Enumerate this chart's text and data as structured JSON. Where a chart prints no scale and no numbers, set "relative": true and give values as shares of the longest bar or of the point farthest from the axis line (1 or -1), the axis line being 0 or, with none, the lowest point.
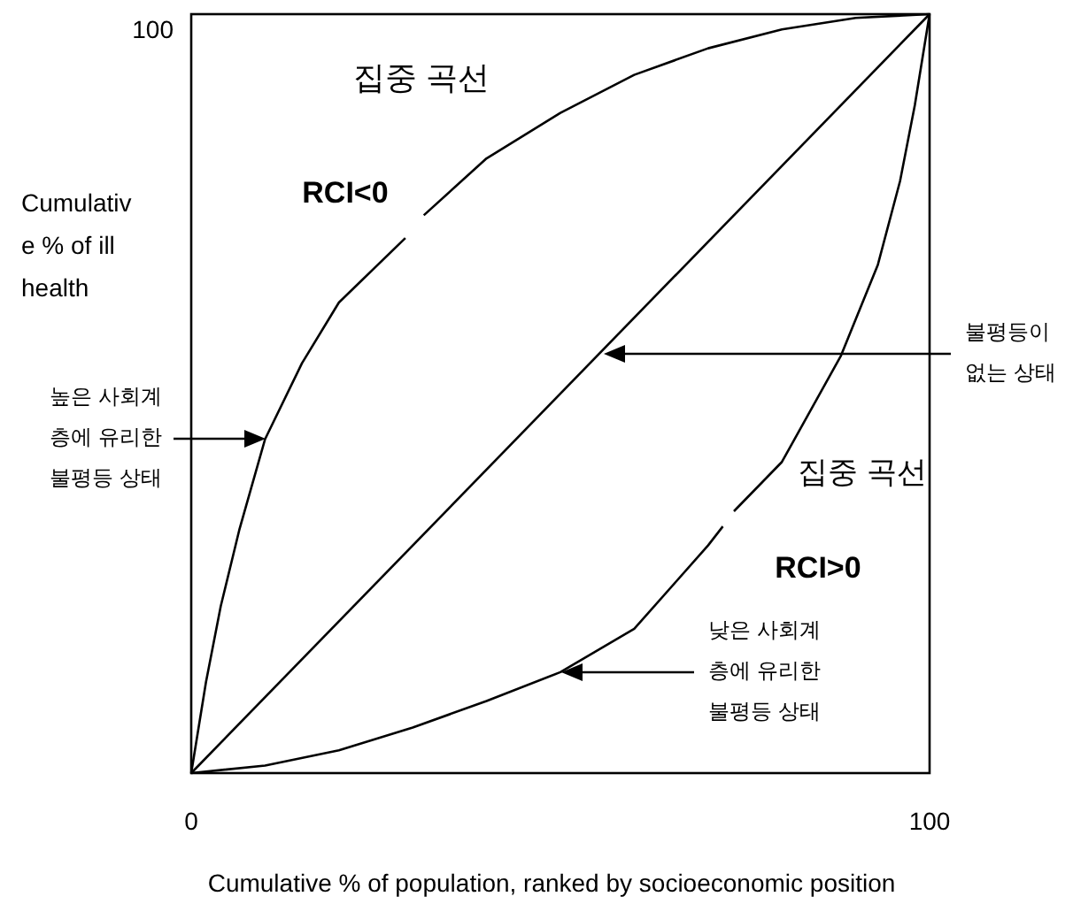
{
  "chart_data": {
    "type": "line",
    "relative": true,
    "xlabel": "Cumulative % of population, ranked by socioeconomic position",
    "ylabel": "Cumulative % of ill health",
    "xlim": [
      0,
      100
    ],
    "xticks": [
      0,
      100
    ],
    "series": [
      {
        "color": "#000000",
        "x": [
          0,
          2,
          4,
          6.5,
          10,
          15,
          20,
          29
        ],
        "values": [
          0,
          0.12,
          0.22,
          0.32,
          0.44,
          0.54,
          0.62,
          0.705
        ]
      },
      {
        "color": "#000000",
        "x": [
          31.5,
          40,
          50,
          60,
          70,
          80,
          90,
          100
        ],
        "values": [
          0.735,
          0.81,
          0.87,
          0.92,
          0.955,
          0.98,
          0.995,
          1
        ]
      },
      {
        "color": "#000000",
        "x": [
          0,
          100
        ],
        "values": [
          0,
          1
        ]
      },
      {
        "color": "#000000",
        "x": [
          0,
          10,
          20,
          30,
          40,
          50,
          60,
          70,
          72
        ],
        "values": [
          0,
          0.01,
          0.03,
          0.06,
          0.095,
          0.133,
          0.19,
          0.3,
          0.325
        ]
      },
      {
        "color": "#000000",
        "x": [
          73.5,
          80,
          88,
          93,
          96,
          98,
          100
        ],
        "values": [
          0.345,
          0.41,
          0.55,
          0.67,
          0.78,
          0.88,
          1
        ]
      }
    ],
    "annotations": [
      "집중 곡선",
      "RCI<0",
      "집중 곡선",
      "RCI>0",
      "높은 사회계층에 유리한 불평등 상태",
      "불평등이 없는 상태",
      "낮은 사회계층에 유리한 불평등 상태",
      "100"
    ]
  }
}
